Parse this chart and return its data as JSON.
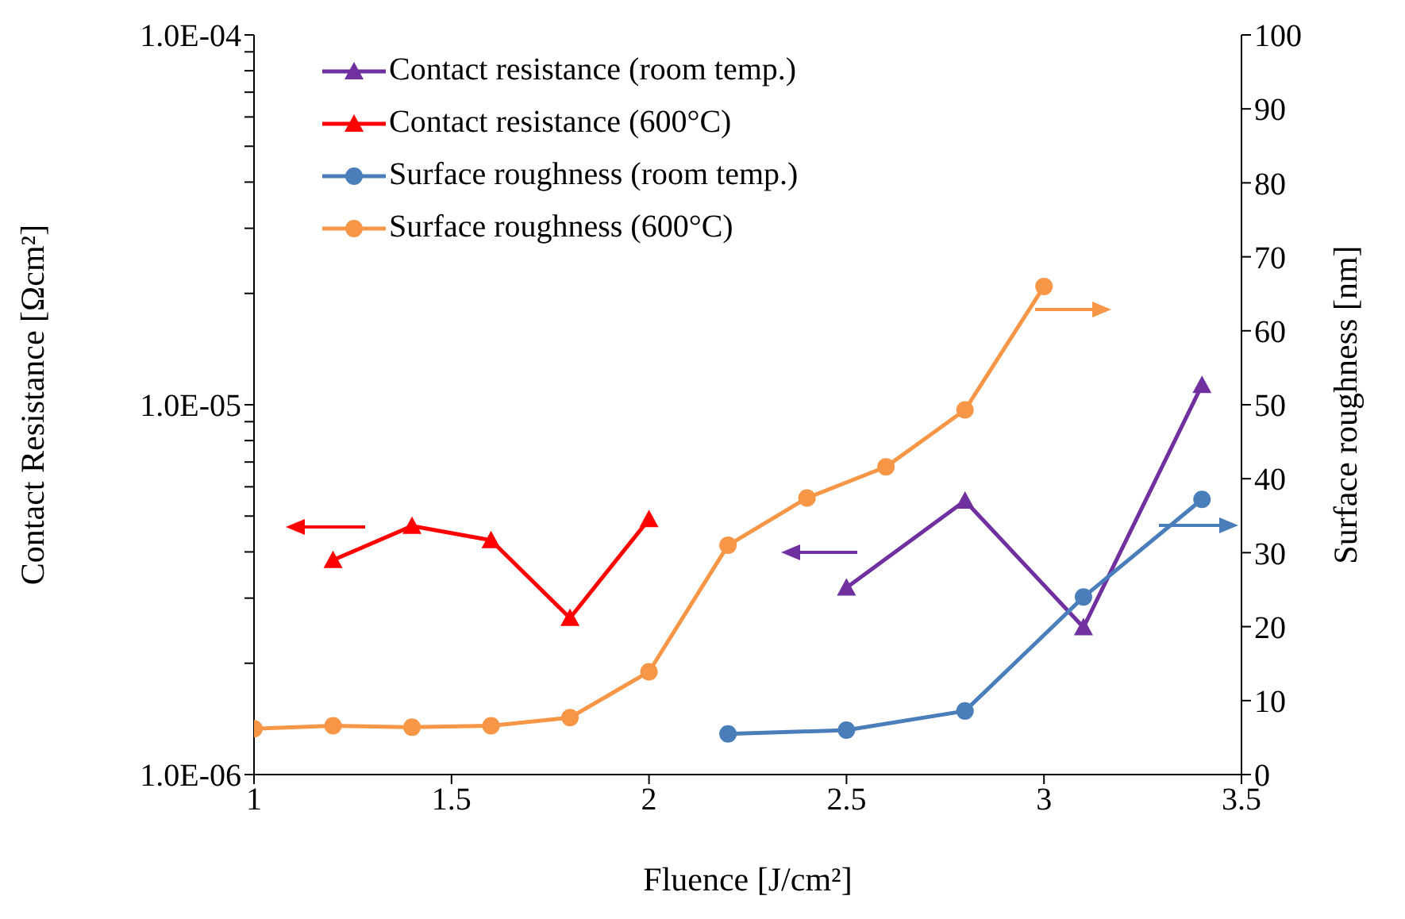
{
  "chart_data": {
    "type": "line",
    "xlabel": "Fluence [J/cm²]",
    "ylabel": "Contact Resistance [Ωcm²]",
    "y2label": "Surface roughness [nm]",
    "log": "y",
    "grid": false,
    "legend": "top left",
    "line_style": "solid",
    "xlim": [
      1,
      3.5
    ],
    "xticks": [
      1,
      1.5,
      2,
      2.5,
      3,
      3.5
    ],
    "ylim": [
      1e-06,
      0.0001
    ],
    "yticks": [
      {
        "value": 1e-06,
        "label": "1.0E-06"
      },
      {
        "value": 2e-06,
        "label": null
      },
      {
        "value": 3e-06,
        "label": null
      },
      {
        "value": 4e-06,
        "label": null
      },
      {
        "value": 5e-06,
        "label": null
      },
      {
        "value": 6e-06,
        "label": null
      },
      {
        "value": 7e-06,
        "label": null
      },
      {
        "value": 8e-06,
        "label": null
      },
      {
        "value": 9e-06,
        "label": null
      },
      {
        "value": 1e-05,
        "label": "1.0E-05"
      },
      {
        "value": 2e-05,
        "label": null
      },
      {
        "value": 3e-05,
        "label": null
      },
      {
        "value": 4e-05,
        "label": null
      },
      {
        "value": 5e-05,
        "label": null
      },
      {
        "value": 6e-05,
        "label": null
      },
      {
        "value": 7e-05,
        "label": null
      },
      {
        "value": 8e-05,
        "label": null
      },
      {
        "value": 9e-05,
        "label": null
      },
      {
        "value": 0.0001,
        "label": "1.0E-04"
      }
    ],
    "y2lim": [
      0,
      100
    ],
    "y2ticks": [
      0,
      10,
      20,
      30,
      40,
      50,
      60,
      70,
      80,
      90,
      100
    ],
    "series": [
      {
        "name": "Contact resistance (room temp.)",
        "color": "#7030a0",
        "marker": "triangle",
        "x": [
          2.5,
          2.8,
          3.1,
          3.4
        ],
        "values": [
          3.2e-06,
          5.5e-06,
          2.5e-06,
          1.13e-05
        ]
      },
      {
        "name": "Contact resistance (600°C)",
        "color": "#ff0000",
        "marker": "triangle",
        "x": [
          1.2,
          1.4,
          1.6,
          1.8,
          2.0
        ],
        "values": [
          3.8e-06,
          4.7e-06,
          4.3e-06,
          2.65e-06,
          4.9e-06
        ]
      },
      {
        "name": "Surface roughness (room temp.)",
        "color": "#4a7ebb",
        "marker": "circle",
        "axis": "y2",
        "x": [
          2.2,
          2.5,
          2.8,
          3.1,
          3.4
        ],
        "values": [
          5.5,
          6,
          8.6,
          24,
          37.2
        ]
      },
      {
        "name": "Surface roughness (600°C)",
        "color": "#f79646",
        "marker": "circle",
        "axis": "y2",
        "x": [
          1.0,
          1.2,
          1.4,
          1.6,
          1.8,
          2.0,
          2.2,
          2.4,
          2.6,
          2.8,
          3.0
        ],
        "values": [
          6.2,
          6.6,
          6.4,
          6.6,
          7.7,
          13.9,
          31,
          37.4,
          41.6,
          49.3,
          66
        ]
      }
    ]
  }
}
